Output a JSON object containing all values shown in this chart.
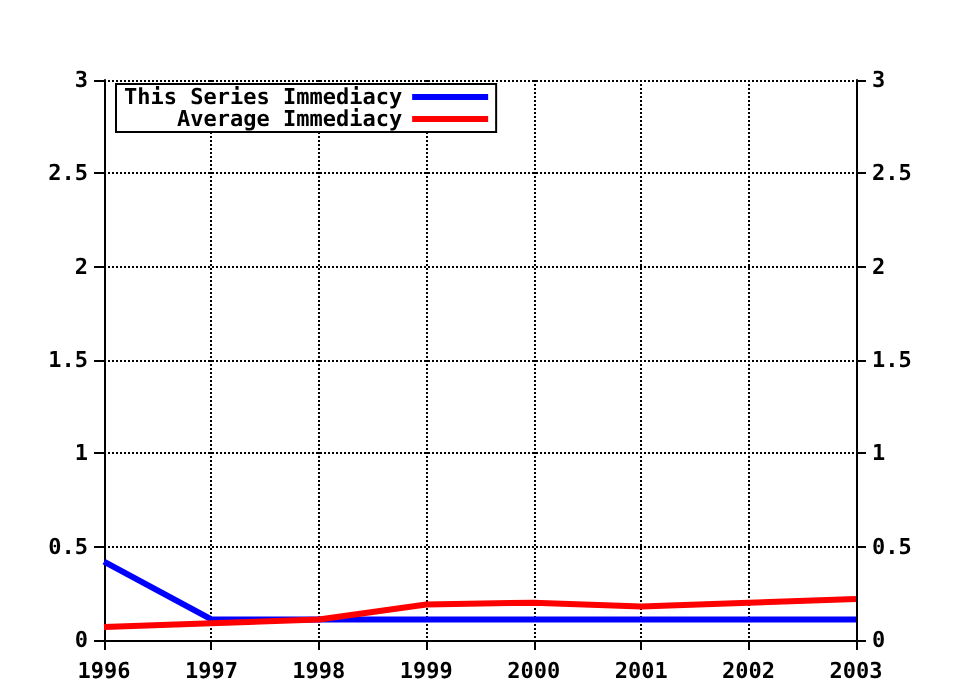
{
  "chart_data": {
    "type": "line",
    "x": [
      1996,
      1997,
      1998,
      1999,
      2000,
      2001,
      2002,
      2003
    ],
    "series": [
      {
        "name": "This Series Immediacy",
        "color": "#0000ff",
        "values": [
          0.42,
          0.11,
          0.11,
          0.11,
          0.11,
          0.11,
          0.11,
          0.11
        ]
      },
      {
        "name": "Average Immediacy",
        "color": "#ff0000",
        "values": [
          0.07,
          0.09,
          0.11,
          0.19,
          0.2,
          0.18,
          0.2,
          0.22
        ]
      }
    ],
    "xlim": [
      1996,
      2003
    ],
    "xticks": [
      1996,
      1997,
      1998,
      1999,
      2000,
      2001,
      2002,
      2003
    ],
    "ylim": [
      0,
      3
    ],
    "yticks": [
      0,
      0.5,
      1,
      1.5,
      2,
      2.5,
      3
    ],
    "y2lim": [
      0,
      3
    ],
    "y2ticks": [
      0,
      0.5,
      1,
      1.5,
      2,
      2.5,
      3
    ],
    "grid": true,
    "legend": "top left",
    "marker": "none",
    "line_style": "solid"
  }
}
